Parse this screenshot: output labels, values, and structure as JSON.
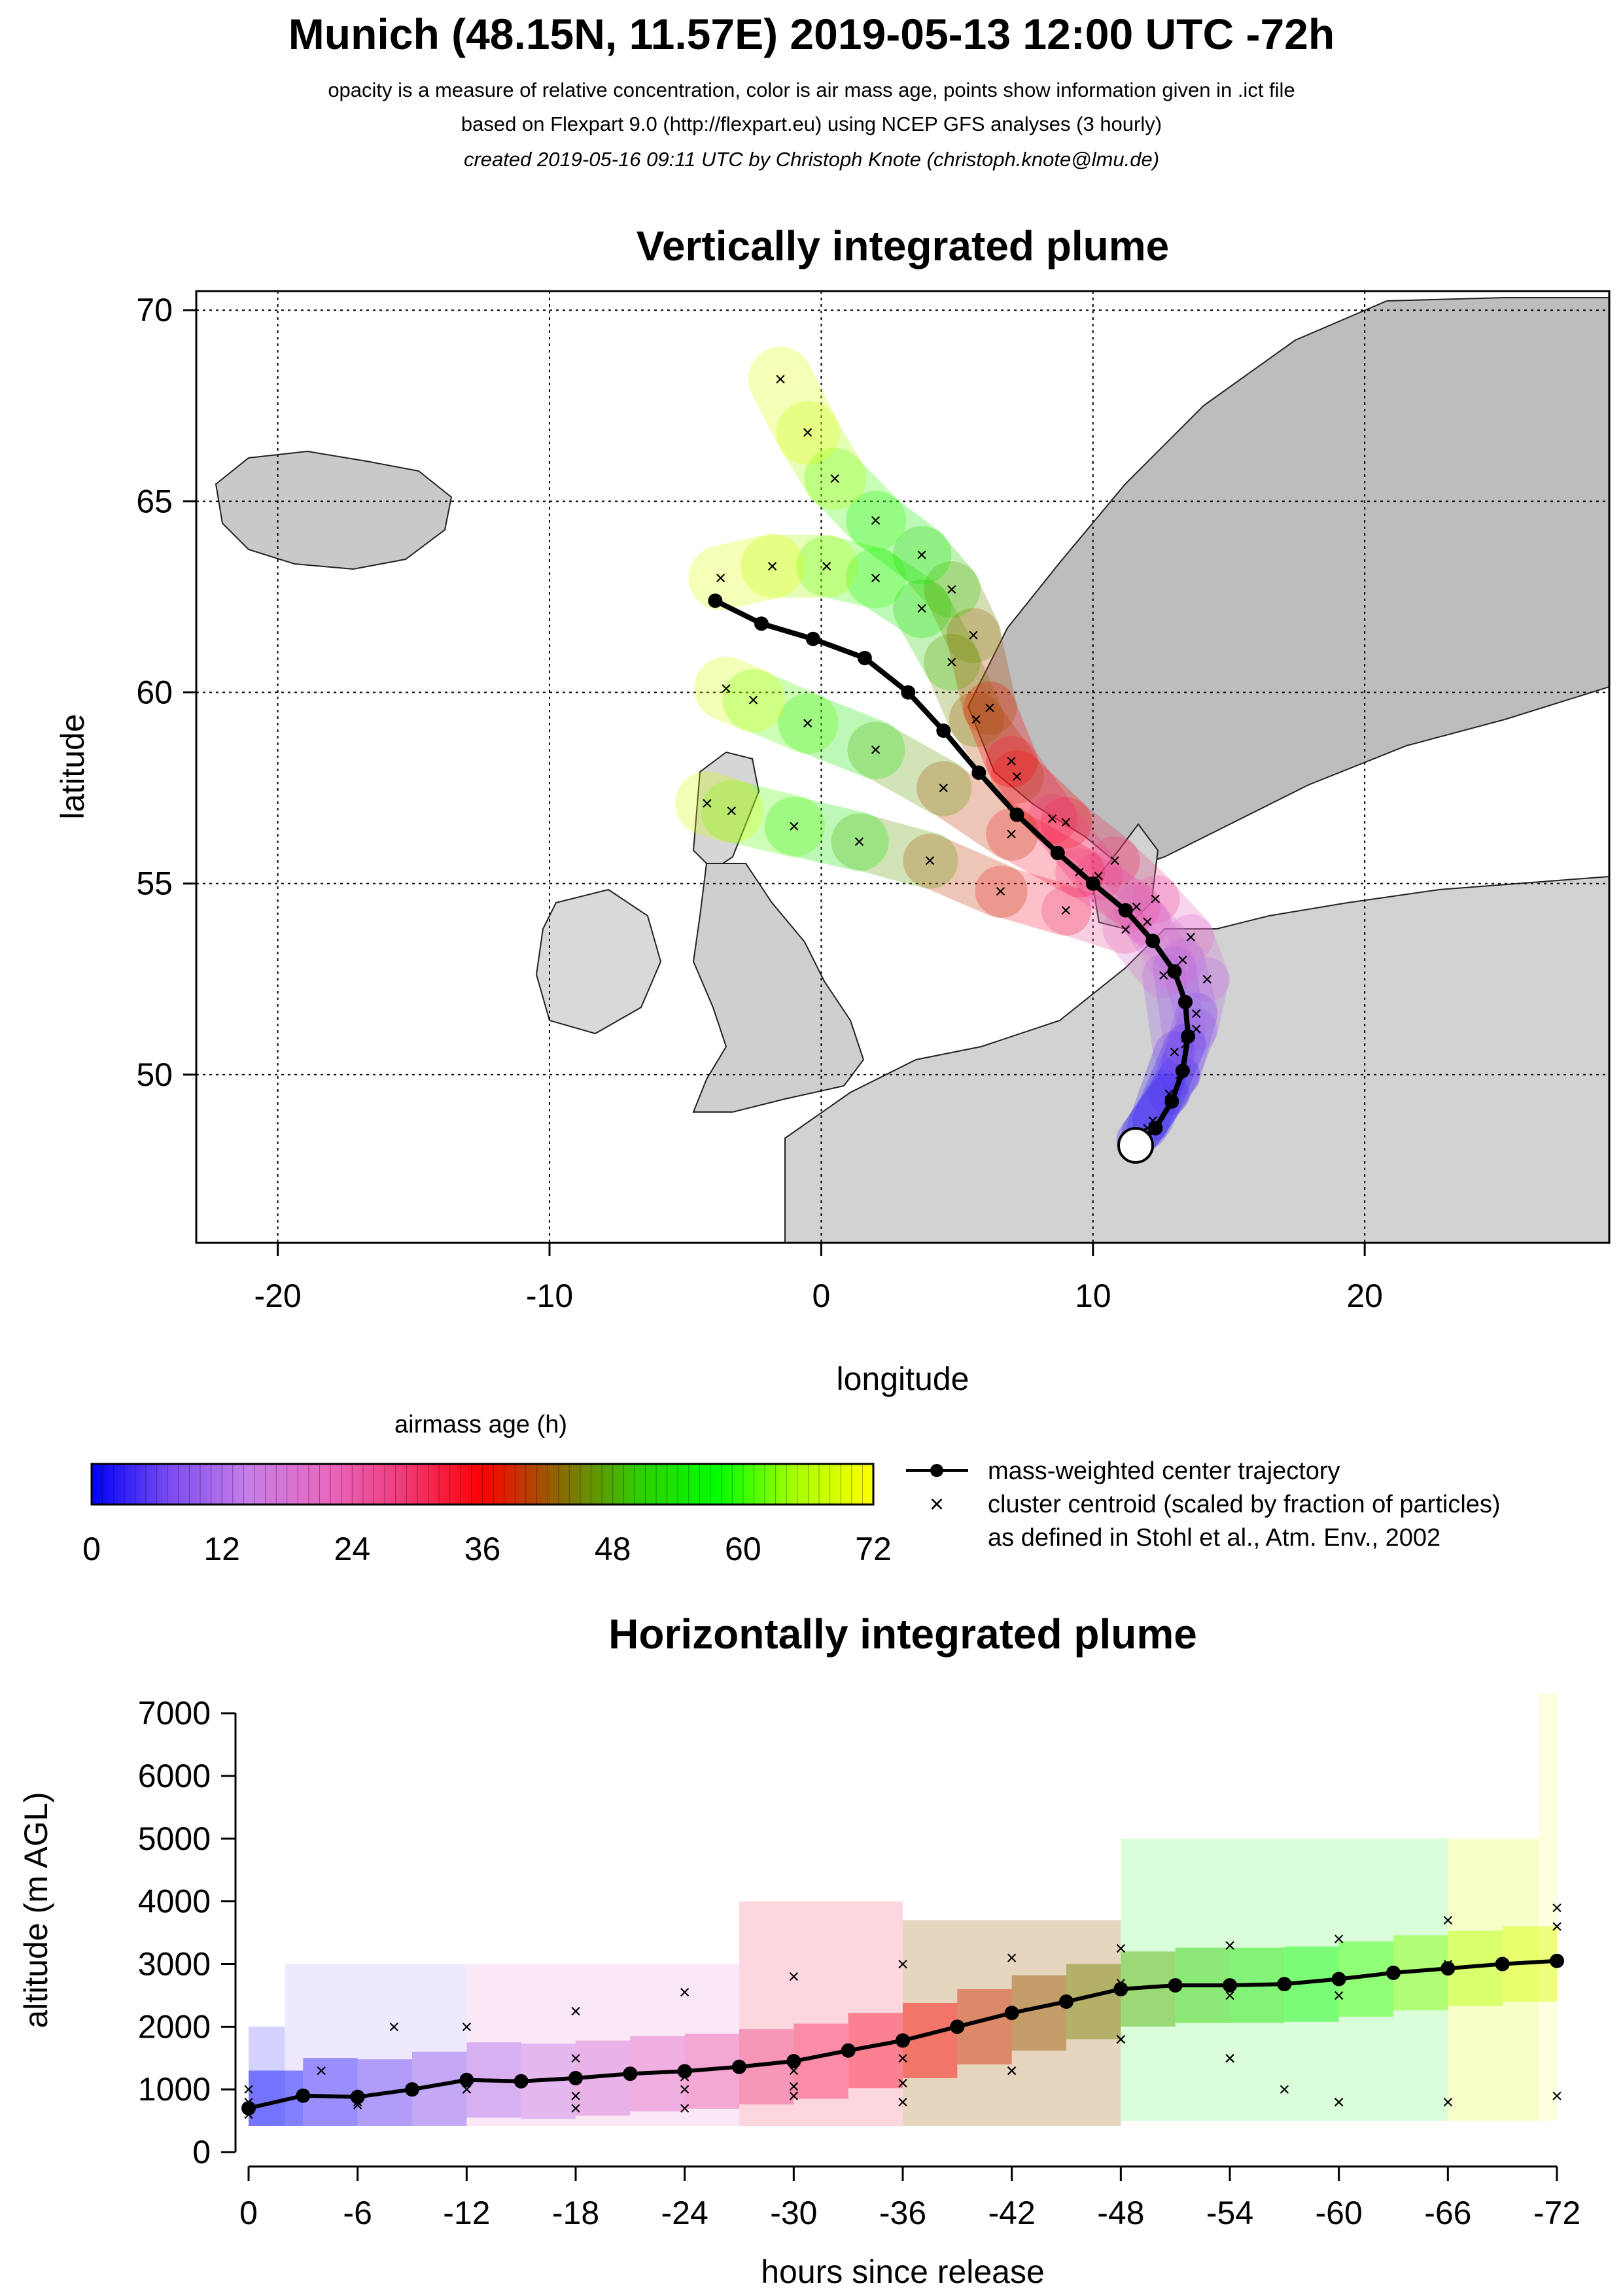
{
  "header": {
    "title": "Munich (48.15N, 11.57E) 2019-05-13 12:00 UTC -72h",
    "line1": "opacity is a measure of relative concentration, color is air mass age, points show information given in .ict file",
    "line2": "based on Flexpart 9.0 (http://flexpart.eu) using NCEP GFS analyses (3 hourly)",
    "line3": "created 2019-05-16 09:11 UTC by Christoph Knote (christoph.knote@lmu.de)"
  },
  "legend": {
    "colorbar_title": "airmass age (h)",
    "colorbar_ticks": [
      "0",
      "12",
      "24",
      "36",
      "48",
      "60",
      "72"
    ],
    "trajectory_label": "mass-weighted center trajectory",
    "cluster_label": "cluster centroid (scaled by fraction of particles)",
    "cluster_label2": "as defined in Stohl et al., Atm. Env., 2002"
  },
  "colors": {
    "age_scale": [
      "#0000ff",
      "#7b4cf0",
      "#c77ee8",
      "#e868c0",
      "#f03a78",
      "#ff0000",
      "#8a6a00",
      "#2fcf00",
      "#00ff00",
      "#a8ff00",
      "#ffff00"
    ]
  },
  "chart_data": [
    {
      "type": "scatter",
      "title": "Vertically integrated plume",
      "xlabel": "longitude",
      "ylabel": "latitude",
      "xlim": [
        -23,
        29
      ],
      "ylim": [
        45.6,
        70.5
      ],
      "xticks": [
        "-20",
        "-10",
        "0",
        "10",
        "20"
      ],
      "xtick_values": [
        -20,
        -10,
        0,
        10,
        20
      ],
      "yticks": [
        "50",
        "55",
        "60",
        "65",
        "70"
      ],
      "ytick_values": [
        50,
        55,
        60,
        65,
        70
      ],
      "grid": true,
      "release_point": {
        "lon": 11.57,
        "lat": 48.15
      },
      "center_trajectory": [
        [
          11.57,
          48.15
        ],
        [
          12.3,
          48.6
        ],
        [
          12.9,
          49.3
        ],
        [
          13.3,
          50.1
        ],
        [
          13.5,
          51.0
        ],
        [
          13.4,
          51.9
        ],
        [
          13.0,
          52.7
        ],
        [
          12.2,
          53.5
        ],
        [
          11.2,
          54.3
        ],
        [
          10.0,
          55.0
        ],
        [
          8.7,
          55.8
        ],
        [
          7.2,
          56.8
        ],
        [
          5.8,
          57.9
        ],
        [
          4.5,
          59.0
        ],
        [
          3.2,
          60.0
        ],
        [
          1.6,
          60.9
        ],
        [
          -0.3,
          61.4
        ],
        [
          -2.2,
          61.8
        ],
        [
          -3.9,
          62.4
        ]
      ],
      "clusters": [
        {
          "points": [
            [
              11.6,
              48.3
            ],
            [
              12.8,
              49.5
            ],
            [
              13.8,
              51.2
            ],
            [
              14.2,
              52.5
            ],
            [
              13.6,
              53.6
            ],
            [
              12.3,
              54.6
            ],
            [
              10.8,
              55.6
            ],
            [
              9.0,
              56.6
            ],
            [
              7.2,
              57.8
            ],
            [
              5.7,
              59.3
            ],
            [
              4.8,
              60.8
            ],
            [
              3.7,
              62.2
            ],
            [
              2.0,
              63.0
            ],
            [
              0.2,
              63.3
            ],
            [
              -1.8,
              63.3
            ],
            [
              -3.7,
              63.0
            ]
          ]
        },
        {
          "points": [
            [
              11.8,
              48.5
            ],
            [
              13.2,
              50.0
            ],
            [
              13.8,
              51.6
            ],
            [
              13.3,
              53.0
            ],
            [
              12.0,
              54.0
            ],
            [
              10.2,
              55.2
            ],
            [
              8.5,
              56.7
            ],
            [
              7.0,
              58.2
            ],
            [
              6.2,
              59.6
            ],
            [
              5.6,
              61.5
            ],
            [
              4.8,
              62.7
            ],
            [
              3.7,
              63.6
            ],
            [
              2.0,
              64.5
            ],
            [
              0.5,
              65.6
            ],
            [
              -0.5,
              66.8
            ],
            [
              -1.5,
              68.2
            ]
          ]
        },
        {
          "points": [
            [
              12.0,
              48.6
            ],
            [
              13.0,
              50.6
            ],
            [
              12.6,
              52.6
            ],
            [
              11.2,
              53.8
            ],
            [
              9.0,
              54.3
            ],
            [
              6.6,
              54.8
            ],
            [
              4.0,
              55.6
            ],
            [
              1.4,
              56.1
            ],
            [
              -1.0,
              56.5
            ],
            [
              -3.3,
              56.9
            ],
            [
              -4.2,
              57.1
            ]
          ]
        },
        {
          "points": [
            [
              12.2,
              48.8
            ],
            [
              13.4,
              50.8
            ],
            [
              13.0,
              52.8
            ],
            [
              11.6,
              54.4
            ],
            [
              9.5,
              55.3
            ],
            [
              7.0,
              56.3
            ],
            [
              4.5,
              57.5
            ],
            [
              2.0,
              58.5
            ],
            [
              -0.5,
              59.2
            ],
            [
              -2.5,
              59.8
            ],
            [
              -3.5,
              60.1
            ]
          ]
        }
      ],
      "plume_color_stops": [
        0,
        12,
        24,
        36,
        48,
        60,
        72
      ]
    },
    {
      "type": "scatter",
      "title": "Horizontally integrated plume",
      "xlabel": "hours since release",
      "ylabel": "altitude (m AGL)",
      "xlim": [
        0,
        -72
      ],
      "ylim": [
        0,
        7200
      ],
      "xticks": [
        "0",
        "-6",
        "-12",
        "-18",
        "-24",
        "-30",
        "-36",
        "-42",
        "-48",
        "-54",
        "-60",
        "-66",
        "-72"
      ],
      "xtick_values": [
        0,
        -6,
        -12,
        -18,
        -24,
        -30,
        -36,
        -42,
        -48,
        -54,
        -60,
        -66,
        -72
      ],
      "yticks": [
        "0",
        "1000",
        "2000",
        "3000",
        "4000",
        "5000",
        "6000",
        "7000"
      ],
      "ytick_values": [
        0,
        1000,
        2000,
        3000,
        4000,
        5000,
        6000,
        7000
      ],
      "center_altitude": [
        [
          0,
          700
        ],
        [
          -3,
          900
        ],
        [
          -6,
          880
        ],
        [
          -9,
          1000
        ],
        [
          -12,
          1150
        ],
        [
          -15,
          1130
        ],
        [
          -18,
          1180
        ],
        [
          -21,
          1250
        ],
        [
          -24,
          1290
        ],
        [
          -27,
          1360
        ],
        [
          -30,
          1450
        ],
        [
          -33,
          1620
        ],
        [
          -36,
          1780
        ],
        [
          -39,
          2000
        ],
        [
          -42,
          2220
        ],
        [
          -45,
          2400
        ],
        [
          -48,
          2600
        ],
        [
          -51,
          2660
        ],
        [
          -54,
          2660
        ],
        [
          -57,
          2680
        ],
        [
          -60,
          2760
        ],
        [
          -63,
          2860
        ],
        [
          -66,
          2930
        ],
        [
          -69,
          3000
        ],
        [
          -72,
          3050
        ]
      ],
      "cluster_altitudes": [
        {
          "points": [
            [
              0,
              600
            ],
            [
              -6,
              800
            ],
            [
              -12,
              1000
            ],
            [
              -18,
              900
            ],
            [
              -24,
              1000
            ],
            [
              -30,
              1050
            ],
            [
              -36,
              1100
            ],
            [
              -42,
              1300
            ],
            [
              -48,
              1800
            ],
            [
              -54,
              1500
            ],
            [
              -57,
              1000
            ],
            [
              -60,
              800
            ],
            [
              -66,
              800
            ],
            [
              -72,
              900
            ]
          ]
        },
        {
          "points": [
            [
              0,
              800
            ],
            [
              -4,
              1300
            ],
            [
              -8,
              2000
            ],
            [
              -12,
              2000
            ],
            [
              -18,
              2250
            ],
            [
              -24,
              2550
            ],
            [
              -30,
              2800
            ],
            [
              -36,
              3000
            ],
            [
              -42,
              3100
            ],
            [
              -48,
              3250
            ],
            [
              -54,
              3300
            ],
            [
              -60,
              3400
            ],
            [
              -66,
              3700
            ],
            [
              -72,
              3900
            ]
          ]
        },
        {
          "points": [
            [
              0,
              700
            ],
            [
              -6,
              750
            ],
            [
              -12,
              1000
            ],
            [
              -18,
              700
            ],
            [
              -24,
              700
            ],
            [
              -30,
              900
            ],
            [
              -36,
              800
            ],
            [
              -42,
              1300
            ],
            [
              -48,
              1800
            ],
            [
              -54,
              1500
            ],
            [
              -60,
              800
            ]
          ]
        },
        {
          "points": [
            [
              0,
              1000
            ],
            [
              -6,
              900
            ],
            [
              -12,
              1100
            ],
            [
              -18,
              1500
            ],
            [
              -24,
              1200
            ],
            [
              -30,
              1300
            ],
            [
              -36,
              1500
            ],
            [
              -42,
              2200
            ],
            [
              -48,
              2700
            ],
            [
              -54,
              2500
            ],
            [
              -60,
              2500
            ],
            [
              -66,
              3000
            ],
            [
              -72,
              3600
            ]
          ]
        }
      ],
      "plume_boxes": [
        [
          0,
          0,
          2000,
          0.18
        ],
        [
          -2,
          0,
          3000,
          0.12
        ],
        [
          -12,
          0,
          3000,
          0.16
        ],
        [
          -27,
          200,
          4000,
          0.18
        ],
        [
          -36,
          300,
          3700,
          0.25
        ],
        [
          -48,
          500,
          5000,
          0.15
        ],
        [
          -66,
          500,
          5000,
          0.22
        ],
        [
          -71,
          500,
          7400,
          0.12
        ]
      ]
    }
  ]
}
